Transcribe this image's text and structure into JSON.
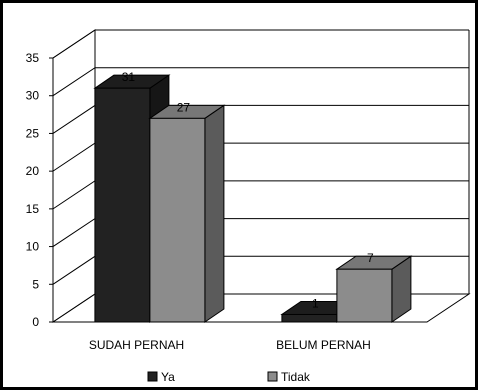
{
  "chart_data": {
    "type": "bar",
    "style": "3d-clustered-column",
    "title": "",
    "xlabel": "",
    "ylabel": "",
    "categories": [
      "SUDAH PERNAH",
      "BELUM PERNAH"
    ],
    "series": [
      {
        "name": "Ya",
        "values": [
          31,
          1
        ],
        "color": "#222222"
      },
      {
        "name": "Tidak",
        "values": [
          27,
          7
        ],
        "color": "#8c8c8c"
      }
    ],
    "ylim": [
      0,
      35
    ],
    "yticks": [
      "0",
      "5",
      "10",
      "15",
      "20",
      "25",
      "30",
      "35"
    ],
    "grid": true,
    "legend": "bottom",
    "data_labels": true
  }
}
